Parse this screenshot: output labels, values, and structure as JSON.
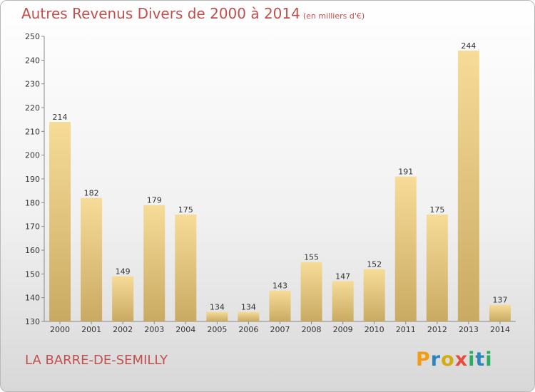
{
  "header": {
    "title": "Autres Revenus Divers de 2000 à 2014",
    "subtitle": "(en milliers d'€)"
  },
  "footer": {
    "location": "LA BARRE-DE-SEMILLY",
    "logo": [
      "P",
      "r",
      "o",
      "x",
      "i",
      "t",
      "i"
    ],
    "logo_colors": [
      "#f39c12",
      "#2e86c1",
      "#d4ac0d",
      "#e74c3c",
      "#27ae60",
      "#2e86c1",
      "#27ae60"
    ]
  },
  "colors": {
    "bar_light": "#f6dc98",
    "bar_dark": "#c9aa62",
    "title": "#c0504d"
  },
  "chart_data": {
    "type": "bar",
    "categories": [
      "2000",
      "2001",
      "2002",
      "2003",
      "2004",
      "2005",
      "2006",
      "2007",
      "2008",
      "2009",
      "2010",
      "2011",
      "2012",
      "2013",
      "2014"
    ],
    "values": [
      214,
      182,
      149,
      179,
      175,
      134,
      134,
      143,
      155,
      147,
      152,
      191,
      175,
      244,
      137
    ],
    "title": "Autres Revenus Divers de 2000 à 2014",
    "subtitle": "(en milliers d'€)",
    "xlabel": "",
    "ylabel": "",
    "ylim": [
      130,
      250
    ],
    "yticks": [
      130,
      140,
      150,
      160,
      170,
      180,
      190,
      200,
      210,
      220,
      230,
      240,
      250
    ],
    "grid": false,
    "data_labels": true
  }
}
